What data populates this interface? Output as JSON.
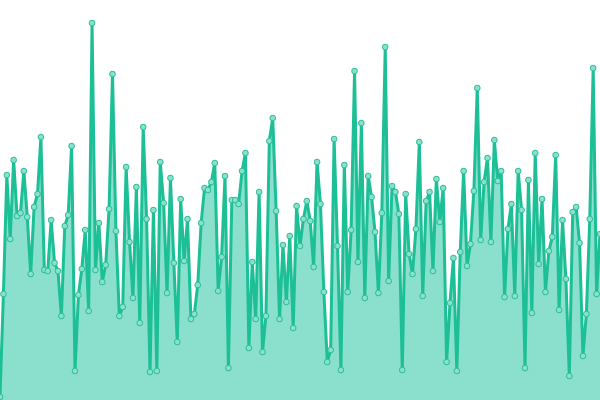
{
  "chart_data": {
    "type": "area",
    "title": "",
    "xlabel": "",
    "ylabel": "",
    "ylim": [
      0,
      400
    ],
    "grid": false,
    "legend": "none",
    "colors": {
      "line": "#1dbf96",
      "fill": "#8be0cd",
      "marker_fill": "#8be0cd",
      "marker_stroke": "#2dbf98"
    },
    "values": [
      3,
      106,
      225,
      161,
      240,
      184,
      187,
      229,
      183,
      126,
      193,
      206,
      263,
      130,
      129,
      180,
      137,
      129,
      84,
      174,
      185,
      254,
      29,
      105,
      131,
      170,
      89,
      377,
      130,
      177,
      118,
      135,
      191,
      326,
      169,
      84,
      93,
      233,
      158,
      102,
      213,
      77,
      273,
      181,
      28,
      190,
      29,
      238,
      197,
      107,
      222,
      137,
      58,
      201,
      139,
      181,
      81,
      86,
      115,
      177,
      212,
      210,
      218,
      237,
      109,
      143,
      224,
      32,
      200,
      200,
      196,
      229,
      247,
      52,
      138,
      81,
      208,
      48,
      84,
      259,
      282,
      189,
      81,
      155,
      98,
      164,
      72,
      194,
      154,
      181,
      199,
      179,
      133,
      238,
      196,
      108,
      38,
      50,
      261,
      154,
      30,
      235,
      108,
      170,
      329,
      138,
      277,
      102,
      224,
      203,
      168,
      107,
      187,
      353,
      119,
      214,
      208,
      186,
      30,
      206,
      146,
      126,
      171,
      258,
      104,
      199,
      208,
      129,
      221,
      178,
      212,
      38,
      97,
      142,
      29,
      148,
      229,
      134,
      156,
      209,
      312,
      160,
      218,
      242,
      158,
      260,
      219,
      229,
      103,
      171,
      196,
      104,
      229,
      190,
      32,
      220,
      87,
      247,
      136,
      201,
      108,
      149,
      163,
      245,
      90,
      180,
      121,
      24,
      188,
      193,
      157,
      44,
      86,
      181,
      332,
      106,
      166
    ]
  }
}
